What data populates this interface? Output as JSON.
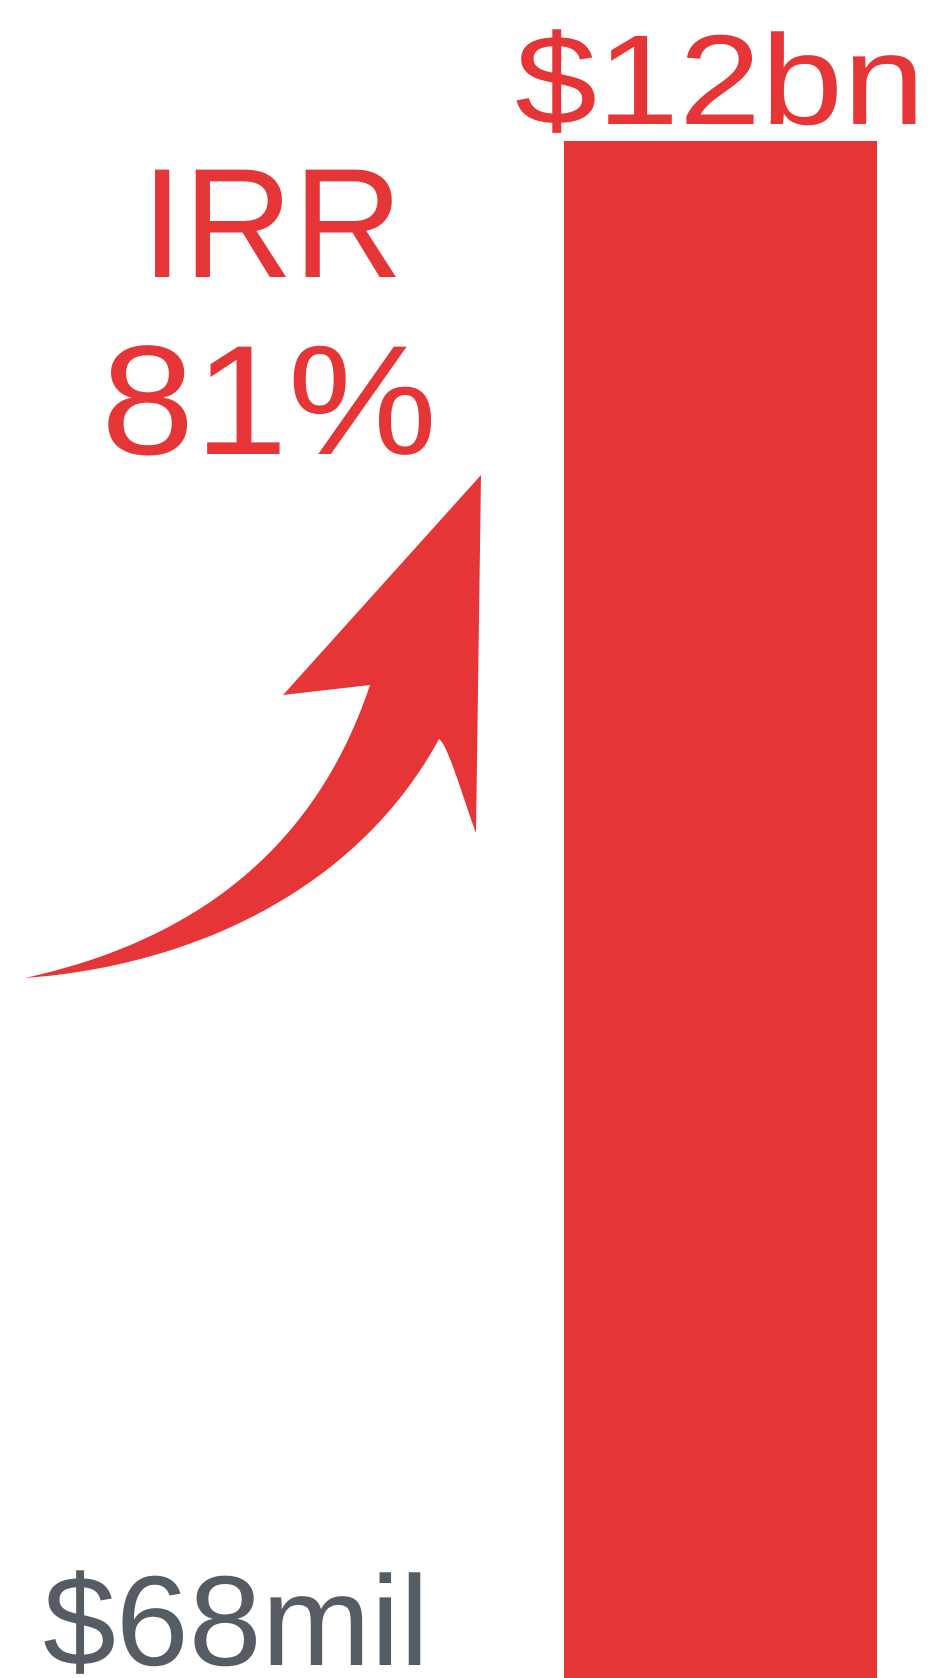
{
  "chart_data": {
    "type": "bar",
    "categories": [
      "",
      ""
    ],
    "values": [
      68000000,
      12000000000
    ],
    "value_labels": [
      "$68mil",
      "$12bn"
    ],
    "annotation": {
      "label": "IRR",
      "value": "81%"
    },
    "colors": {
      "accent": "#e63537",
      "start_label": "#555c63",
      "background": "#ffffff"
    },
    "icons": {
      "growth_arrow": "curved-up-arrow-icon"
    },
    "grid": false,
    "legend": "none"
  }
}
